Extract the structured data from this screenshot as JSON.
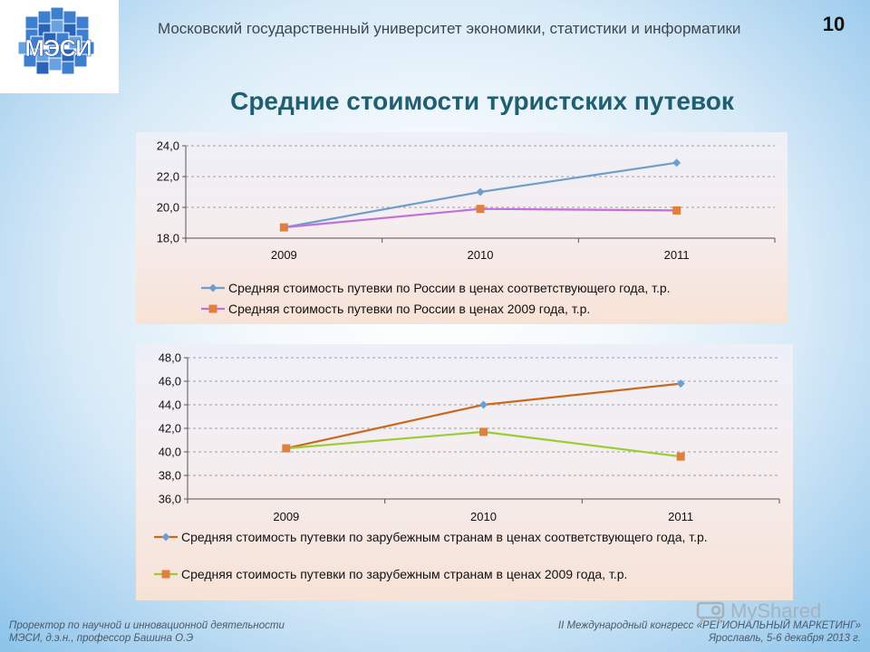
{
  "header": {
    "university": "Московский государственный университет экономики, статистики и информатики",
    "page_number": "10",
    "logo_icon": "university-logo-icon"
  },
  "title": "Средние стоимости туристских путевок",
  "chart_data": [
    {
      "type": "line",
      "categories": [
        "2009",
        "2010",
        "2011"
      ],
      "ylim": [
        18.0,
        24.0
      ],
      "yticks": [
        "18,0",
        "20,0",
        "22,0",
        "24,0"
      ],
      "grid": true,
      "legend": "bottom",
      "series": [
        {
          "name": "Средняя стоимость путевки по России в ценах соответствующего года, т.р.",
          "values": [
            18.7,
            21.0,
            22.9
          ],
          "color": "#6e9fcc",
          "marker": "diamond"
        },
        {
          "name": "Средняя стоимость путевки по России в ценах 2009 года, т.р.",
          "values": [
            18.7,
            19.9,
            19.8
          ],
          "color": "#c070d8",
          "marker": "square",
          "marker_color": "#e08040"
        }
      ]
    },
    {
      "type": "line",
      "categories": [
        "2009",
        "2010",
        "2011"
      ],
      "ylim": [
        36.0,
        48.0
      ],
      "yticks": [
        "36,0",
        "38,0",
        "40,0",
        "42,0",
        "44,0",
        "46,0",
        "48,0"
      ],
      "grid": true,
      "legend": "bottom",
      "series": [
        {
          "name": "Средняя стоимость путевки по зарубежным странам в ценах соответствующего года, т.р.",
          "values": [
            40.3,
            44.0,
            45.8
          ],
          "color": "#c8691e",
          "marker": "diamond",
          "marker_color": "#6e9fcc"
        },
        {
          "name": "Средняя стоимость путевки по зарубежным странам в ценах 2009 года, т.р.",
          "values": [
            40.3,
            41.7,
            39.6
          ],
          "color": "#9acd32",
          "marker": "square",
          "marker_color": "#e08040"
        }
      ]
    }
  ],
  "footer": {
    "left_line1": "Проректор по научной и инновационной деятельности",
    "left_line2": "МЭСИ, д.э.н., профессор Башина О.Э",
    "right_line1": "II Международный конгресс «РЕГИОНАЛЬНЫЙ МАРКЕТИНГ»",
    "right_line2": "Ярославль, 5-6 декабря 2013 г."
  },
  "watermark": {
    "text": "MyShared",
    "icon": "projector-icon"
  }
}
